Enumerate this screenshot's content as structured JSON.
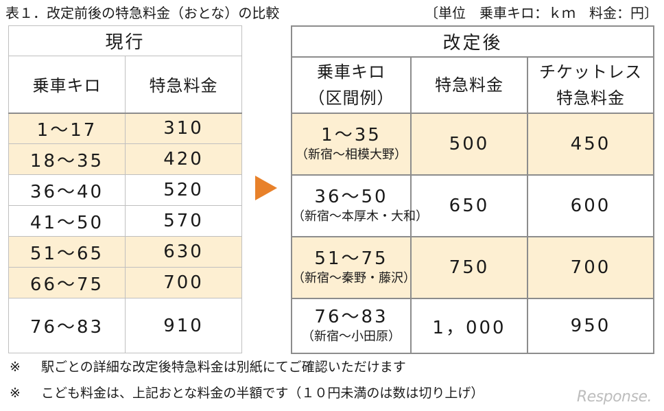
{
  "title": "表１．改定前後の特急料金（おとな）の比較",
  "unit": "〔単位　乗車キロ：ｋｍ　料金：円〕",
  "old_table": {
    "header": "現行",
    "col_km": "乗車キロ",
    "col_fare": "特急料金",
    "rows": [
      {
        "km": "1～17",
        "fare": "310"
      },
      {
        "km": "18～35",
        "fare": "420"
      },
      {
        "km": "36～40",
        "fare": "520"
      },
      {
        "km": "41～50",
        "fare": "570"
      },
      {
        "km": "51～65",
        "fare": "630"
      },
      {
        "km": "66～75",
        "fare": "700"
      },
      {
        "km": "76～83",
        "fare": "910"
      }
    ]
  },
  "new_table": {
    "header": "改定後",
    "col_km_1": "乗車キロ",
    "col_km_2": "（区間例）",
    "col_fare": "特急料金",
    "col_ticketless_1": "チケットレス",
    "col_ticketless_2": "特急料金",
    "rows": [
      {
        "km": "1～35",
        "example": "（新宿～相模大野）",
        "fare": "500",
        "ticketless": "450"
      },
      {
        "km": "36～50",
        "example": "（新宿～本厚木・大和）",
        "fare": "650",
        "ticketless": "600"
      },
      {
        "km": "51～75",
        "example": "（新宿～秦野・藤沢）",
        "fare": "750",
        "ticketless": "700"
      },
      {
        "km": "76～83",
        "example": "（新宿～小田原）",
        "fare": "1，000",
        "ticketless": "950"
      }
    ]
  },
  "notes": [
    {
      "mark": "※",
      "text": "駅ごとの詳細な改定後特急料金は別紙にてご確認いただけます"
    },
    {
      "mark": "※",
      "text": "こども料金は、上記おとな料金の半額です（１０円未満のは数は切り上げ）"
    }
  ],
  "watermark": "Response.",
  "colors": {
    "highlight": "#fdefd2",
    "arrow": "#e8812a"
  }
}
